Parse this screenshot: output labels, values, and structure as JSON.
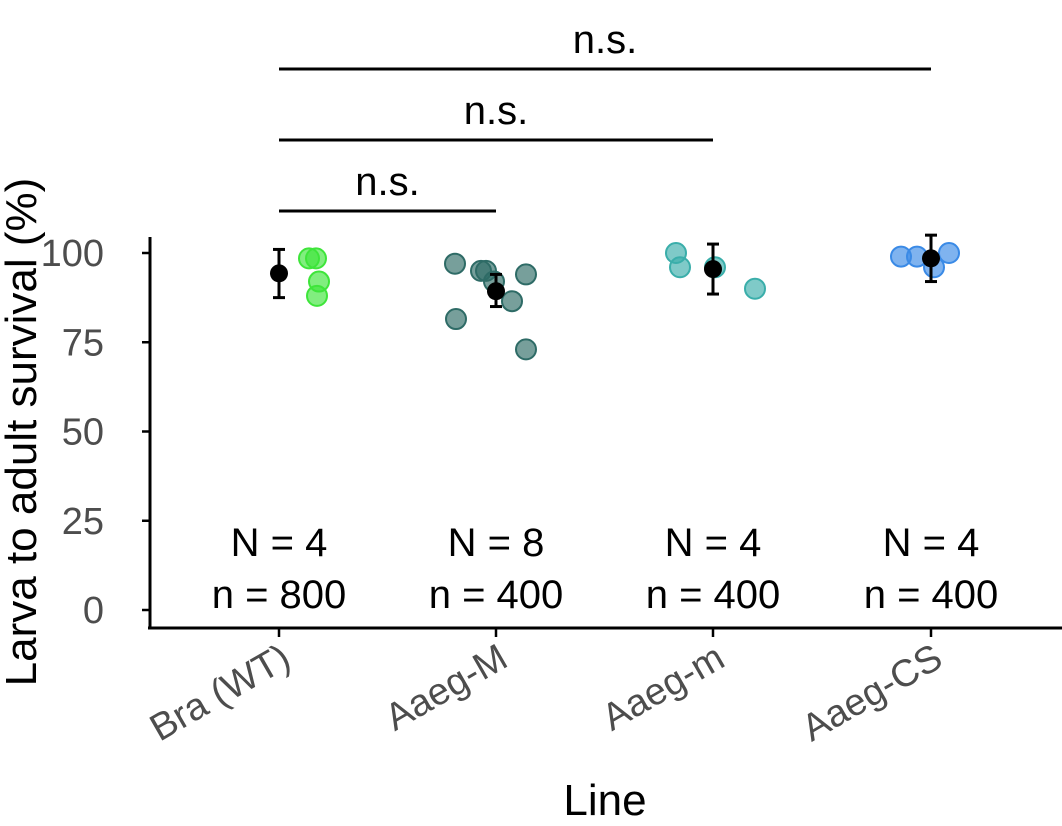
{
  "chart_data": {
    "type": "scatter",
    "xlabel": "Line",
    "ylabel": "Larva to adult survival (%)",
    "categories": [
      "Bra (WT)",
      "Aaeg-M",
      "Aaeg-m",
      "Aaeg-CS"
    ],
    "yticks": [
      "0",
      "25",
      "50",
      "75",
      "100"
    ],
    "ylim": [
      -4,
      105
    ],
    "grid": false,
    "colors": {
      "Bra (WT)": "#3ee53a",
      "Aaeg-M": "#2e6b66",
      "Aaeg-m": "#3aaeaa",
      "Aaeg-CS": "#3a8ae6",
      "summary": "#000000",
      "axis": "#000000",
      "tick_label": "#4d4d4d"
    },
    "points": [
      {
        "category": "Bra (WT)",
        "values": [
          98.5,
          98.5,
          92,
          88
        ]
      },
      {
        "category": "Aaeg-M",
        "values": [
          97,
          95,
          95,
          94,
          92,
          86.5,
          81.5,
          73
        ]
      },
      {
        "category": "Aaeg-m",
        "values": [
          100,
          96,
          96,
          90
        ]
      },
      {
        "category": "Aaeg-CS",
        "values": [
          99,
          99,
          96,
          100
        ]
      }
    ],
    "summary": [
      {
        "category": "Bra (WT)",
        "mean": 94.3,
        "lower": 87.5,
        "upper": 101
      },
      {
        "category": "Aaeg-M",
        "mean": 89.3,
        "lower": 85,
        "upper": 94
      },
      {
        "category": "Aaeg-m",
        "mean": 95.5,
        "lower": 88.5,
        "upper": 102.5
      },
      {
        "category": "Aaeg-CS",
        "mean": 98.5,
        "lower": 92,
        "upper": 105
      }
    ],
    "sample_sizes": [
      {
        "category": "Bra (WT)",
        "N": "N = 4",
        "n": "n = 800"
      },
      {
        "category": "Aaeg-M",
        "N": "N = 8",
        "n": "n = 400"
      },
      {
        "category": "Aaeg-m",
        "N": "N = 4",
        "n": "n = 400"
      },
      {
        "category": "Aaeg-CS",
        "N": "N = 4",
        "n": "n = 400"
      }
    ],
    "comparisons": [
      {
        "from": "Bra (WT)",
        "to": "Aaeg-M",
        "label": "n.s."
      },
      {
        "from": "Bra (WT)",
        "to": "Aaeg-m",
        "label": "n.s."
      },
      {
        "from": "Bra (WT)",
        "to": "Aaeg-CS",
        "label": "n.s."
      }
    ]
  }
}
